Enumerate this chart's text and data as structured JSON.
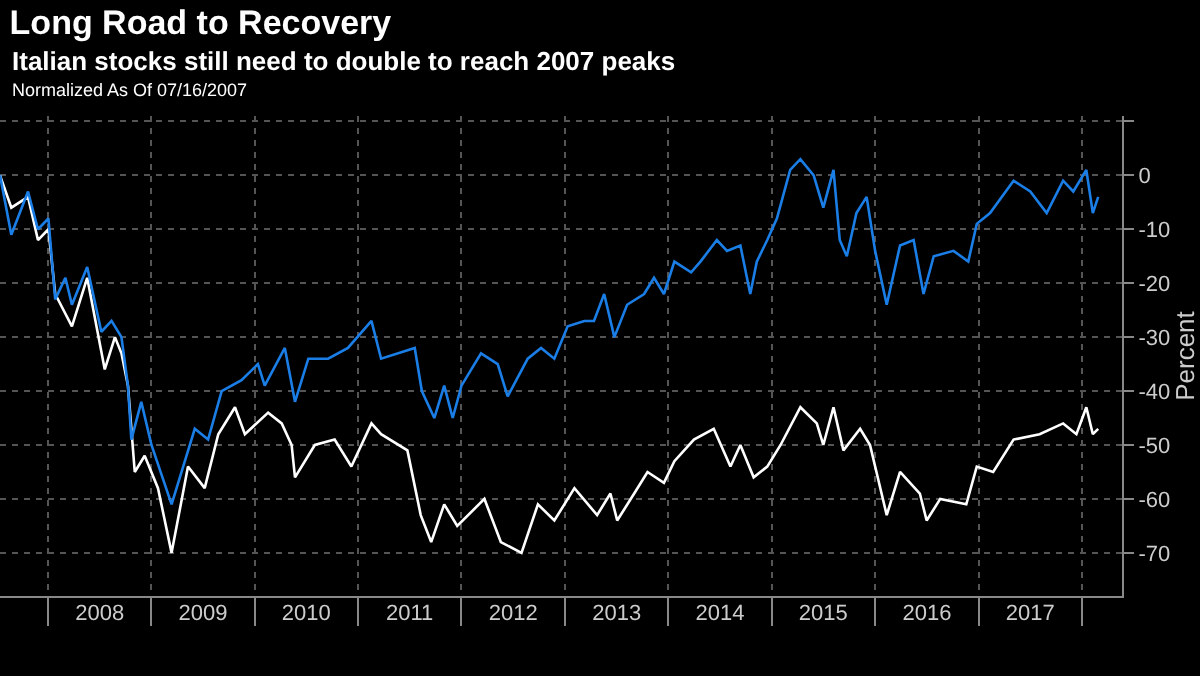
{
  "chart_data": {
    "type": "line",
    "title": "Long Road to Recovery",
    "subtitle": "Italian stocks still need to double to reach 2007 peaks",
    "ylabel": "Percent",
    "legend_title": "Normalized As Of 07/16/2007",
    "grid": true,
    "xlim": [
      "2007-07-16",
      "2018-05-22"
    ],
    "ylim": [
      -78,
      11
    ],
    "xticks": [
      {
        "value": "2008-01-01",
        "label": null
      },
      {
        "value": "2009-01-01",
        "label": null
      },
      {
        "value": "2010-01-01",
        "label": null
      },
      {
        "value": "2011-01-01",
        "label": null
      },
      {
        "value": "2012-01-01",
        "label": null
      },
      {
        "value": "2013-01-01",
        "label": null
      },
      {
        "value": "2014-01-01",
        "label": null
      },
      {
        "value": "2015-01-01",
        "label": null
      },
      {
        "value": "2016-01-01",
        "label": null
      },
      {
        "value": "2017-01-01",
        "label": null
      },
      {
        "value": "2018-01-01",
        "label": null
      },
      {
        "value": "2008-07-02",
        "label": "2008"
      },
      {
        "value": "2009-07-02",
        "label": "2009"
      },
      {
        "value": "2010-07-02",
        "label": "2010"
      },
      {
        "value": "2011-07-02",
        "label": "2011"
      },
      {
        "value": "2012-07-02",
        "label": "2012"
      },
      {
        "value": "2013-07-02",
        "label": "2013"
      },
      {
        "value": "2014-07-02",
        "label": "2014"
      },
      {
        "value": "2015-07-02",
        "label": "2015"
      },
      {
        "value": "2016-07-02",
        "label": "2016"
      },
      {
        "value": "2017-07-02",
        "label": "2017"
      }
    ],
    "yticks": [
      {
        "value": 10,
        "label": null
      },
      0,
      -10,
      -20,
      -30,
      -40,
      -50,
      -60,
      -70
    ],
    "series": [
      {
        "color": "#ffffff",
        "x": [
          "2007-07-16",
          "2007-08-25",
          "2007-10-23",
          "2007-11-27",
          "2008-01-03",
          "2008-01-27",
          "2008-03-26",
          "2008-05-19",
          "2008-07-20",
          "2008-08-25",
          "2008-09-17",
          "2008-10-10",
          "2008-11-03",
          "2008-12-08",
          "2009-01-24",
          "2009-03-13",
          "2009-05-10",
          "2009-07-08",
          "2009-08-25",
          "2009-10-23",
          "2009-11-27",
          "2010-02-17",
          "2010-04-06",
          "2010-05-11",
          "2010-05-23",
          "2010-08-01",
          "2010-10-10",
          "2010-12-08",
          "2011-02-17",
          "2011-03-23",
          "2011-06-24",
          "2011-08-10",
          "2011-09-16",
          "2011-11-01",
          "2011-12-17",
          "2012-03-22",
          "2012-05-19",
          "2012-07-31",
          "2012-09-27",
          "2012-11-24",
          "2013-02-03",
          "2013-04-24",
          "2013-06-10",
          "2013-07-04",
          "2013-09-02",
          "2013-10-19",
          "2013-12-16",
          "2014-01-22",
          "2014-04-01",
          "2014-06-10",
          "2014-08-08",
          "2014-09-12",
          "2014-10-29",
          "2014-12-16",
          "2015-02-01",
          "2015-04-12",
          "2015-06-09",
          "2015-07-02",
          "2015-08-07",
          "2015-09-11",
          "2015-11-09",
          "2015-12-14",
          "2016-02-11",
          "2016-03-29",
          "2016-06-07",
          "2016-07-01",
          "2016-08-18",
          "2016-11-18",
          "2016-12-25",
          "2017-02-21",
          "2017-05-04",
          "2017-08-04",
          "2017-10-26",
          "2017-12-12",
          "2018-01-16",
          "2018-02-08",
          "2018-02-27"
        ],
        "values": [
          0,
          -6,
          -4,
          -12,
          -10,
          -22,
          -28,
          -19,
          -36,
          -30,
          -33,
          -39,
          -55,
          -52,
          -58,
          -70,
          -54,
          -58,
          -48,
          -43,
          -48,
          -44,
          -46,
          -50,
          -56,
          -50,
          -49,
          -54,
          -46,
          -48,
          -51,
          -63,
          -68,
          -61,
          -65,
          -60,
          -68,
          -70,
          -61,
          -64,
          -58,
          -63,
          -59,
          -64,
          -59,
          -55,
          -57,
          -53,
          -49,
          -47,
          -54,
          -50,
          -56,
          -54,
          -50,
          -43,
          -46,
          -50,
          -43,
          -51,
          -47,
          -50,
          -63,
          -55,
          -59,
          -64,
          -60,
          -61,
          -54,
          -55,
          -49,
          -48,
          -46,
          -48,
          -43,
          -48,
          -47
        ]
      },
      {
        "color": "#1a7ee6",
        "x": [
          "2007-07-16",
          "2007-08-25",
          "2007-10-23",
          "2007-11-27",
          "2008-01-03",
          "2008-01-27",
          "2008-03-03",
          "2008-03-26",
          "2008-05-19",
          "2008-07-08",
          "2008-08-13",
          "2008-09-17",
          "2008-10-10",
          "2008-10-22",
          "2008-11-26",
          "2009-01-01",
          "2009-03-13",
          "2009-06-03",
          "2009-07-20",
          "2009-09-06",
          "2009-11-15",
          "2010-01-12",
          "2010-02-05",
          "2010-04-17",
          "2010-05-23",
          "2010-07-09",
          "2010-09-17",
          "2010-11-26",
          "2011-02-17",
          "2011-03-23",
          "2011-07-20",
          "2011-08-14",
          "2011-09-27",
          "2011-11-01",
          "2011-12-01",
          "2012-01-01",
          "2012-03-10",
          "2012-05-08",
          "2012-06-12",
          "2012-08-22",
          "2012-10-08",
          "2012-11-24",
          "2013-01-10",
          "2013-03-10",
          "2013-04-13",
          "2013-05-19",
          "2013-06-24",
          "2013-08-08",
          "2013-10-07",
          "2013-11-11",
          "2013-12-16",
          "2014-01-22",
          "2014-03-22",
          "2014-04-24",
          "2014-06-21",
          "2014-07-27",
          "2014-09-12",
          "2014-10-17",
          "2014-11-09",
          "2014-12-16",
          "2015-01-19",
          "2015-03-07",
          "2015-04-12",
          "2015-05-29",
          "2015-07-02",
          "2015-08-07",
          "2015-08-29",
          "2015-09-23",
          "2015-10-27",
          "2015-12-02",
          "2016-01-01",
          "2016-02-11",
          "2016-03-29",
          "2016-05-16",
          "2016-06-20",
          "2016-07-26",
          "2016-10-04",
          "2016-11-25",
          "2016-12-25",
          "2017-02-10",
          "2017-05-04",
          "2017-07-02",
          "2017-08-29",
          "2017-10-26",
          "2017-12-01",
          "2018-01-16",
          "2018-02-08",
          "2018-02-27"
        ],
        "values": [
          0,
          -11,
          -3,
          -10,
          -8,
          -23,
          -19,
          -24,
          -17,
          -29,
          -27,
          -30,
          -39,
          -49,
          -42,
          -50,
          -61,
          -47,
          -49,
          -40,
          -38,
          -35,
          -39,
          -32,
          -42,
          -34,
          -34,
          -32,
          -27,
          -34,
          -32,
          -40,
          -45,
          -39,
          -45,
          -39,
          -33,
          -35,
          -41,
          -34,
          -32,
          -34,
          -28,
          -27,
          -27,
          -22,
          -30,
          -24,
          -22,
          -19,
          -22,
          -16,
          -18,
          -16,
          -12,
          -14,
          -13,
          -22,
          -16,
          -12,
          -8,
          1,
          3,
          0,
          -6,
          1,
          -12,
          -15,
          -7,
          -4,
          -14,
          -24,
          -13,
          -12,
          -22,
          -15,
          -14,
          -16,
          -9,
          -7,
          -1,
          -3,
          -7,
          -1,
          -3,
          1,
          -7,
          -4
        ]
      }
    ]
  }
}
